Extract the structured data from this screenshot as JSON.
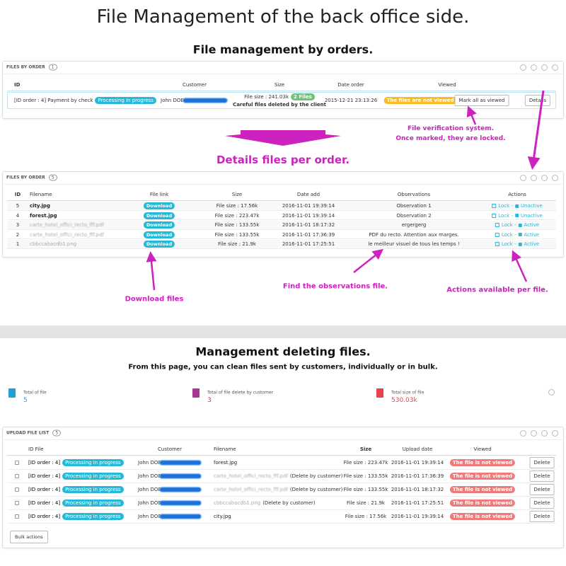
{
  "header": {
    "title": "File Management of the back office side.",
    "section1": "File management by orders.",
    "section2": "Details files per order.",
    "section3": "Management deleting files.",
    "section3_subtitle": "From this page, you can clean files sent by customers, individually or in bulk."
  },
  "orders_panel": {
    "title": "FILES BY ORDER",
    "count": 1,
    "columns": [
      "ID",
      "Customer",
      "Size",
      "Date order",
      "Viewed"
    ],
    "rows": [
      {
        "order": "[ID order : 4] Payment by check",
        "status": "Processing in progress",
        "customer": "John DOE",
        "size": "File size : 241.03k",
        "files": "2 Files",
        "note": "Careful files deleted by the client",
        "date": "2015-12-21 23:13:26",
        "viewed": "The files are not viewed",
        "mark": "Mark all as viewed",
        "details": "Details"
      }
    ]
  },
  "annotations": {
    "verification": [
      "File verification system.",
      "Once marked, they are locked."
    ],
    "download": "Download files",
    "observations": "Find the observations file.",
    "actions": "Actions available per file."
  },
  "files_panel": {
    "title": "FILES BY ORDER",
    "count": 5,
    "columns": [
      "ID",
      "Filename",
      "File link",
      "Size",
      "Date add",
      "Observations",
      "Actions"
    ],
    "rows": [
      {
        "id": 5,
        "filename": "city.jpg",
        "link": "Download",
        "size": "File size : 17.56k",
        "date": "2016-11-01 19:39:14",
        "observation": "Observation 1",
        "lock": "Lock -",
        "state": "Unactive"
      },
      {
        "id": 4,
        "filename": "forest.jpg",
        "link": "Download",
        "size": "File size : 223.47k",
        "date": "2016-11-01 19:39:14",
        "observation": "Observation 2",
        "lock": "Lock -",
        "state": "Unactive"
      },
      {
        "id": 3,
        "filename": "carte_hotel_offici_recto_fff.pdf",
        "link": "Download",
        "size": "File size : 133.55k",
        "date": "2016-11-01 18:17:32",
        "observation": "ergergerg",
        "lock": "Lock -",
        "state": "Active"
      },
      {
        "id": 2,
        "filename": "carte_hotel_offici_recto_fff.pdf",
        "link": "Download",
        "size": "File size : 133.55k",
        "date": "2016-11-01 17:36:39",
        "observation": "PDF du recto. Attention aux marges.",
        "lock": "Lock -",
        "state": "Active"
      },
      {
        "id": 1,
        "filename": "cbbccabacdb1.png",
        "link": "Download",
        "size": "File size : 21.9k",
        "date": "2016-11-01 17:25:51",
        "observation": "le meilleur visuel de tous les temps !",
        "lock": "Lock -",
        "state": "Active"
      }
    ]
  },
  "stats": [
    {
      "label": "Total of file",
      "value": 5
    },
    {
      "label": "Total of file delete by customer",
      "value": 3
    },
    {
      "label": "Total size of file",
      "value": "530.03k"
    }
  ],
  "upload_panel": {
    "title": "UPLOAD FILE LIST",
    "count": 5,
    "columns": [
      "ID File",
      "Customer",
      "Filename",
      "Size",
      "Upload date",
      "Viewed"
    ],
    "rows": [
      {
        "order": "[ID order : 4]",
        "status": "Processing in progress",
        "customer": "John DOE",
        "filename": "forest.jpg",
        "size": "File size : 223.47k",
        "date": "2016-11-01 19:39:14",
        "viewed": "The file is not viewed",
        "action": "Delete"
      },
      {
        "order": "[ID order : 4]",
        "status": "Processing in progress",
        "customer": "John DOE",
        "filename": "carte_hotel_offici_recto_fff.pdf",
        "deleted": "(Delete by customer)",
        "size": "File size : 133.55k",
        "date": "2016-11-01 17:36:39",
        "viewed": "The file is not viewed",
        "action": "Delete"
      },
      {
        "order": "[ID order : 4]",
        "status": "Processing in progress",
        "customer": "John DOE",
        "filename": "carte_hotel_offici_recto_fff.pdf",
        "deleted": "(Delete by customer)",
        "size": "File size : 133.55k",
        "date": "2016-11-01 18:17:32",
        "viewed": "The file is not viewed",
        "action": "Delete"
      },
      {
        "order": "[ID order : 4]",
        "status": "Processing in progress",
        "customer": "John DOE",
        "filename": "cbbccabacdb1.png",
        "deleted": "(Delete by customer)",
        "size": "File size : 21.9k",
        "date": "2016-11-01 17:25:51",
        "viewed": "The file is not viewed",
        "action": "Delete"
      },
      {
        "order": "[ID order : 4]",
        "status": "Processing in progress",
        "customer": "John DOE",
        "filename": "city.jpg",
        "size": "File size : 17.56k",
        "date": "2016-11-01 19:39:14",
        "viewed": "The file is not viewed",
        "action": "Delete"
      }
    ],
    "bulk": "Bulk actions"
  }
}
